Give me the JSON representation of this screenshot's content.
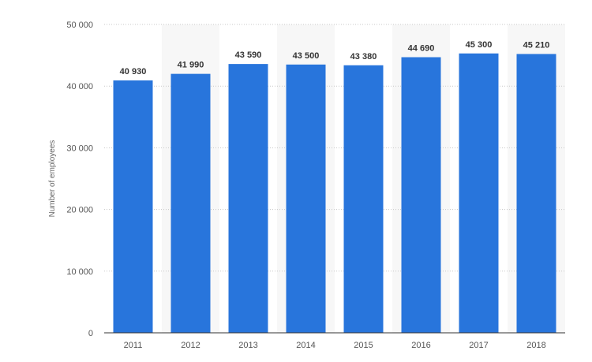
{
  "chart_data": {
    "type": "bar",
    "categories": [
      "2011",
      "2012",
      "2013",
      "2014",
      "2015",
      "2016",
      "2017",
      "2018"
    ],
    "values": [
      40930,
      41990,
      43590,
      43500,
      43380,
      44690,
      45300,
      45210
    ],
    "value_labels": [
      "40 930",
      "41 990",
      "43 590",
      "43 500",
      "43 380",
      "44 690",
      "45 300",
      "45 210"
    ],
    "title": "",
    "xlabel": "",
    "ylabel": "Number of employees",
    "ylim": [
      0,
      50000
    ],
    "yticks": [
      0,
      10000,
      20000,
      30000,
      40000,
      50000
    ],
    "ytick_labels": [
      "0",
      "10 000",
      "20 000",
      "30 000",
      "40 000",
      "50 000"
    ],
    "grid": true,
    "bar_color": "#2875dc",
    "band_color": "#f7f7f7"
  }
}
